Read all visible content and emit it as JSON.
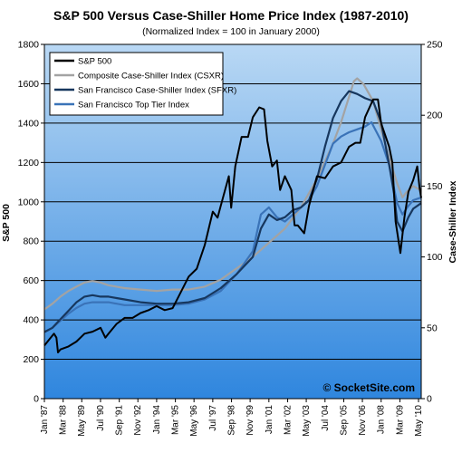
{
  "chart_data": {
    "type": "line",
    "title": "S&P 500 Versus  Case-Shiller Home Price Index (1987-2010)",
    "subtitle": "(Normalized Index = 100 in January 2000)",
    "ylabel": "S&P 500",
    "y2label": "Case-Shiller Index",
    "ylim": [
      0,
      1800
    ],
    "yticks": [
      "0",
      "200",
      "400",
      "600",
      "800",
      "1000",
      "1200",
      "1400",
      "1600",
      "1800"
    ],
    "y2lim": [
      0,
      250
    ],
    "y2ticks": [
      "0",
      "50",
      "100",
      "150",
      "200",
      "250"
    ],
    "xlim": [
      1987.0,
      2010.5
    ],
    "xticks": [
      {
        "label": "Jan '87",
        "x": 1987.0
      },
      {
        "label": "Mar '88",
        "x": 1988.17
      },
      {
        "label": "May '89",
        "x": 1989.33
      },
      {
        "label": "Jul '90",
        "x": 1990.5
      },
      {
        "label": "Sep '91",
        "x": 1991.67
      },
      {
        "label": "Nov '92",
        "x": 1992.83
      },
      {
        "label": "Jan '94",
        "x": 1994.0
      },
      {
        "label": "Mar '95",
        "x": 1995.17
      },
      {
        "label": "May '96",
        "x": 1996.33
      },
      {
        "label": "Jul '97",
        "x": 1997.5
      },
      {
        "label": "Sep '98",
        "x": 1998.67
      },
      {
        "label": "Nov '99",
        "x": 1999.83
      },
      {
        "label": "Jan '01",
        "x": 2001.0
      },
      {
        "label": "Mar '02",
        "x": 2002.17
      },
      {
        "label": "May '03",
        "x": 2003.33
      },
      {
        "label": "Jul '04",
        "x": 2004.5
      },
      {
        "label": "Sep '05",
        "x": 2005.67
      },
      {
        "label": "Nov '06",
        "x": 2006.83
      },
      {
        "label": "Jan '08",
        "x": 2008.0
      },
      {
        "label": "Mar '09",
        "x": 2009.17
      },
      {
        "label": "May '10",
        "x": 2010.33
      }
    ],
    "grid": true,
    "legend_position": "top-left",
    "watermark": "© SocketSite.com",
    "series": [
      {
        "name": "S&P 500",
        "axis": "left",
        "color": "#000000",
        "points": [
          [
            1987.0,
            270
          ],
          [
            1987.3,
            300
          ],
          [
            1987.6,
            330
          ],
          [
            1987.75,
            310
          ],
          [
            1987.85,
            235
          ],
          [
            1988.0,
            250
          ],
          [
            1988.5,
            265
          ],
          [
            1989.0,
            290
          ],
          [
            1989.5,
            330
          ],
          [
            1990.0,
            340
          ],
          [
            1990.5,
            360
          ],
          [
            1990.8,
            310
          ],
          [
            1991.0,
            330
          ],
          [
            1991.5,
            380
          ],
          [
            1992.0,
            410
          ],
          [
            1992.5,
            410
          ],
          [
            1993.0,
            435
          ],
          [
            1993.5,
            450
          ],
          [
            1994.0,
            470
          ],
          [
            1994.5,
            450
          ],
          [
            1995.0,
            460
          ],
          [
            1995.5,
            540
          ],
          [
            1996.0,
            620
          ],
          [
            1996.5,
            660
          ],
          [
            1997.0,
            780
          ],
          [
            1997.5,
            950
          ],
          [
            1997.8,
            920
          ],
          [
            1998.0,
            980
          ],
          [
            1998.5,
            1130
          ],
          [
            1998.65,
            970
          ],
          [
            1998.9,
            1180
          ],
          [
            1999.3,
            1330
          ],
          [
            1999.7,
            1330
          ],
          [
            2000.0,
            1430
          ],
          [
            2000.4,
            1480
          ],
          [
            2000.7,
            1470
          ],
          [
            2000.9,
            1310
          ],
          [
            2001.2,
            1180
          ],
          [
            2001.5,
            1210
          ],
          [
            2001.7,
            1060
          ],
          [
            2002.0,
            1130
          ],
          [
            2002.4,
            1060
          ],
          [
            2002.6,
            880
          ],
          [
            2002.8,
            880
          ],
          [
            2003.2,
            840
          ],
          [
            2003.5,
            980
          ],
          [
            2004.0,
            1130
          ],
          [
            2004.5,
            1120
          ],
          [
            2005.0,
            1180
          ],
          [
            2005.5,
            1200
          ],
          [
            2006.0,
            1280
          ],
          [
            2006.4,
            1300
          ],
          [
            2006.7,
            1300
          ],
          [
            2007.0,
            1430
          ],
          [
            2007.5,
            1520
          ],
          [
            2007.8,
            1520
          ],
          [
            2008.0,
            1400
          ],
          [
            2008.5,
            1280
          ],
          [
            2008.7,
            1200
          ],
          [
            2008.9,
            900
          ],
          [
            2009.2,
            740
          ],
          [
            2009.45,
            920
          ],
          [
            2009.7,
            1050
          ],
          [
            2010.0,
            1110
          ],
          [
            2010.25,
            1180
          ],
          [
            2010.4,
            1070
          ],
          [
            2010.5,
            1020
          ]
        ]
      },
      {
        "name": "Composite Case-Shiller Index (CSXR)",
        "axis": "right",
        "color": "#a3a3a3",
        "points": [
          [
            1987.0,
            63
          ],
          [
            1987.5,
            67
          ],
          [
            1988.0,
            72
          ],
          [
            1988.5,
            76
          ],
          [
            1989.0,
            79
          ],
          [
            1989.5,
            82
          ],
          [
            1990.0,
            83
          ],
          [
            1990.5,
            82
          ],
          [
            1991.0,
            80
          ],
          [
            1991.5,
            79
          ],
          [
            1992.0,
            78
          ],
          [
            1993.0,
            77
          ],
          [
            1994.0,
            76
          ],
          [
            1995.0,
            77
          ],
          [
            1996.0,
            77
          ],
          [
            1997.0,
            79
          ],
          [
            1998.0,
            84
          ],
          [
            1999.0,
            92
          ],
          [
            2000.0,
            100
          ],
          [
            2001.0,
            110
          ],
          [
            2002.0,
            120
          ],
          [
            2003.0,
            135
          ],
          [
            2004.0,
            155
          ],
          [
            2005.0,
            180
          ],
          [
            2005.5,
            195
          ],
          [
            2006.0,
            213
          ],
          [
            2006.3,
            224
          ],
          [
            2006.5,
            226
          ],
          [
            2006.9,
            222
          ],
          [
            2007.5,
            210
          ],
          [
            2008.0,
            190
          ],
          [
            2008.5,
            170
          ],
          [
            2009.0,
            152
          ],
          [
            2009.33,
            142
          ],
          [
            2009.6,
            146
          ],
          [
            2010.0,
            150
          ],
          [
            2010.5,
            147
          ]
        ]
      },
      {
        "name": "San Francisco Case-Shiller Index (SFXR)",
        "axis": "right",
        "color": "#17375e",
        "points": [
          [
            1987.0,
            47
          ],
          [
            1987.5,
            50
          ],
          [
            1988.0,
            56
          ],
          [
            1988.5,
            62
          ],
          [
            1989.0,
            68
          ],
          [
            1989.5,
            72
          ],
          [
            1990.0,
            73
          ],
          [
            1990.5,
            72
          ],
          [
            1991.0,
            72
          ],
          [
            1991.5,
            71
          ],
          [
            1992.0,
            70
          ],
          [
            1993.0,
            68
          ],
          [
            1994.0,
            67
          ],
          [
            1995.0,
            67
          ],
          [
            1996.0,
            68
          ],
          [
            1997.0,
            71
          ],
          [
            1998.0,
            78
          ],
          [
            1999.0,
            88
          ],
          [
            2000.0,
            100
          ],
          [
            2000.5,
            120
          ],
          [
            2001.0,
            130
          ],
          [
            2001.5,
            126
          ],
          [
            2002.0,
            128
          ],
          [
            2002.5,
            133
          ],
          [
            2003.0,
            135
          ],
          [
            2003.5,
            140
          ],
          [
            2004.0,
            155
          ],
          [
            2004.5,
            178
          ],
          [
            2005.0,
            198
          ],
          [
            2005.5,
            210
          ],
          [
            2006.0,
            217
          ],
          [
            2006.5,
            215
          ],
          [
            2007.0,
            212
          ],
          [
            2007.5,
            210
          ],
          [
            2008.0,
            195
          ],
          [
            2008.5,
            165
          ],
          [
            2008.8,
            145
          ],
          [
            2009.0,
            125
          ],
          [
            2009.33,
            118
          ],
          [
            2009.7,
            128
          ],
          [
            2010.0,
            134
          ],
          [
            2010.5,
            138
          ]
        ]
      },
      {
        "name": "San Francisco Top Tier Index",
        "axis": "right",
        "color": "#3a73b8",
        "points": [
          [
            1987.0,
            47
          ],
          [
            1987.5,
            50
          ],
          [
            1988.0,
            55
          ],
          [
            1988.5,
            60
          ],
          [
            1989.0,
            64
          ],
          [
            1989.5,
            67
          ],
          [
            1990.0,
            68
          ],
          [
            1990.5,
            68
          ],
          [
            1991.0,
            68
          ],
          [
            1991.5,
            67
          ],
          [
            1992.0,
            66
          ],
          [
            1993.0,
            66
          ],
          [
            1994.0,
            66
          ],
          [
            1995.0,
            66
          ],
          [
            1996.0,
            67
          ],
          [
            1997.0,
            70
          ],
          [
            1998.0,
            76
          ],
          [
            1999.0,
            88
          ],
          [
            2000.0,
            104
          ],
          [
            2000.5,
            130
          ],
          [
            2001.0,
            135
          ],
          [
            2001.5,
            128
          ],
          [
            2002.0,
            125
          ],
          [
            2002.5,
            130
          ],
          [
            2003.0,
            135
          ],
          [
            2003.5,
            140
          ],
          [
            2004.0,
            150
          ],
          [
            2004.5,
            165
          ],
          [
            2005.0,
            180
          ],
          [
            2005.5,
            185
          ],
          [
            2006.0,
            188
          ],
          [
            2006.5,
            190
          ],
          [
            2007.0,
            192
          ],
          [
            2007.4,
            195
          ],
          [
            2008.0,
            182
          ],
          [
            2008.5,
            165
          ],
          [
            2009.0,
            138
          ],
          [
            2009.33,
            130
          ],
          [
            2009.7,
            136
          ],
          [
            2010.0,
            140
          ],
          [
            2010.5,
            142
          ]
        ]
      }
    ]
  },
  "colors": {
    "plot_bg_top": "#b9d8f4",
    "plot_bg_bottom": "#2f86de",
    "grid": "#000000"
  }
}
